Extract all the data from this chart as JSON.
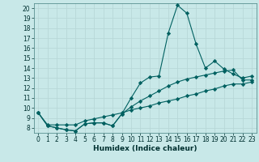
{
  "xlabel": "Humidex (Indice chaleur)",
  "background_color": "#c8e8e8",
  "grid_color": "#b8d8d8",
  "line_color": "#006060",
  "x_values": [
    0,
    1,
    2,
    3,
    4,
    5,
    6,
    7,
    8,
    9,
    10,
    11,
    12,
    13,
    14,
    15,
    16,
    17,
    18,
    19,
    20,
    21,
    22,
    23
  ],
  "line1_y": [
    9.5,
    8.2,
    8.0,
    7.8,
    7.7,
    8.4,
    8.5,
    8.5,
    8.2,
    9.4,
    11.0,
    12.5,
    13.1,
    13.2,
    17.5,
    20.3,
    19.5,
    16.4,
    14.0,
    14.7,
    13.9,
    13.4,
    13.0,
    13.2
  ],
  "line2_y": [
    9.5,
    8.2,
    8.0,
    7.8,
    7.7,
    8.4,
    8.5,
    8.5,
    8.2,
    9.4,
    10.1,
    10.7,
    11.2,
    11.7,
    12.2,
    12.6,
    12.9,
    13.1,
    13.3,
    13.5,
    13.7,
    13.8,
    12.8,
    12.8
  ],
  "line3_y": [
    9.5,
    8.3,
    8.3,
    8.3,
    8.3,
    8.7,
    8.9,
    9.1,
    9.3,
    9.5,
    9.8,
    10.0,
    10.2,
    10.5,
    10.7,
    10.9,
    11.2,
    11.4,
    11.7,
    11.9,
    12.2,
    12.4,
    12.4,
    12.6
  ],
  "xlim": [
    -0.5,
    23.5
  ],
  "ylim": [
    7.5,
    20.5
  ],
  "yticks": [
    8,
    9,
    10,
    11,
    12,
    13,
    14,
    15,
    16,
    17,
    18,
    19,
    20
  ],
  "xticks": [
    0,
    1,
    2,
    3,
    4,
    5,
    6,
    7,
    8,
    9,
    10,
    11,
    12,
    13,
    14,
    15,
    16,
    17,
    18,
    19,
    20,
    21,
    22,
    23
  ],
  "tick_fontsize": 5.5,
  "label_fontsize": 6.5
}
